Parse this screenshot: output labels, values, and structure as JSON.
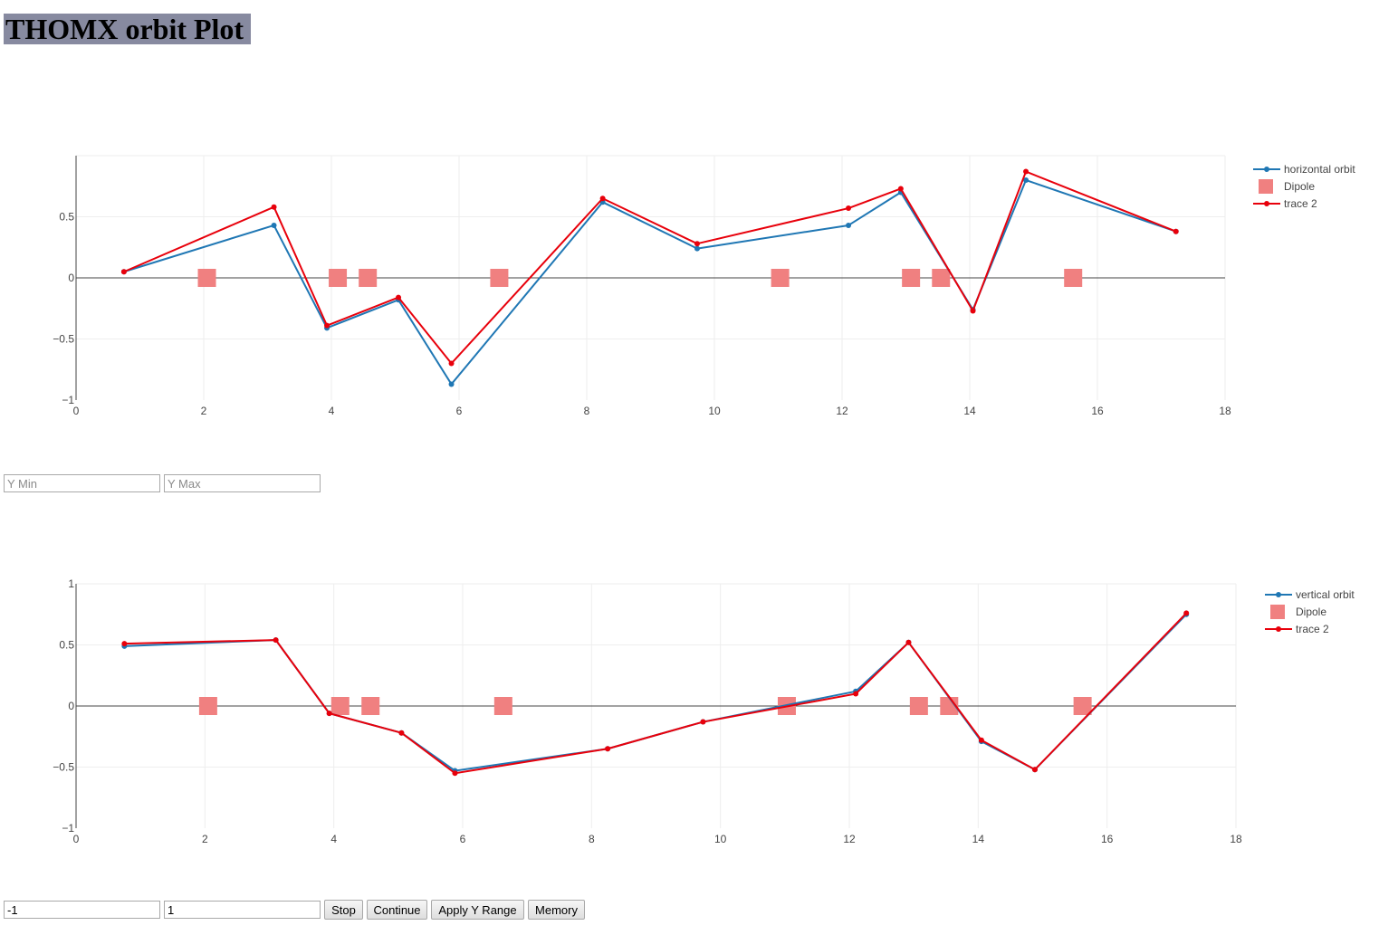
{
  "header": {
    "title": "THOMX orbit Plot"
  },
  "y_range_top": {
    "min_placeholder": "Y Min",
    "max_placeholder": "Y Max"
  },
  "y_range_bottom": {
    "min_value": "-1",
    "max_value": "1"
  },
  "buttons": {
    "stop": "Stop",
    "continue": "Continue",
    "apply": "Apply Y Range",
    "memory": "Memory"
  },
  "colors": {
    "orbit": "#1f77b4",
    "trace2": "#e8000b",
    "dipole": "#f08080"
  },
  "chart_data": [
    {
      "type": "line",
      "xlim": [
        0,
        18
      ],
      "ylim": [
        -1,
        1
      ],
      "x_ticks": [
        "0",
        "2",
        "4",
        "6",
        "8",
        "10",
        "12",
        "14",
        "16",
        "18"
      ],
      "y_ticks": [
        "0.5",
        "0",
        "−0.5",
        "−1"
      ],
      "grid": true,
      "legend_position": "top-right",
      "series": [
        {
          "name": "horizontal orbit",
          "mode": "lines+markers",
          "x": [
            0.75,
            3.1,
            3.93,
            5.05,
            5.88,
            8.25,
            9.73,
            12.1,
            12.92,
            14.05,
            14.88,
            17.23
          ],
          "y": [
            0.05,
            0.43,
            -0.41,
            -0.18,
            -0.87,
            0.62,
            0.24,
            0.43,
            0.7,
            -0.26,
            0.8,
            0.38
          ]
        },
        {
          "name": "Dipole",
          "mode": "markers",
          "x": [
            2.05,
            4.1,
            4.57,
            6.63,
            11.03,
            13.08,
            13.55,
            15.62
          ],
          "y": [
            0,
            0,
            0,
            0,
            0,
            0,
            0,
            0
          ]
        },
        {
          "name": "trace 2",
          "mode": "lines+markers",
          "x": [
            0.75,
            3.1,
            3.93,
            5.05,
            5.88,
            8.25,
            9.73,
            12.1,
            12.92,
            14.05,
            14.88,
            17.23
          ],
          "y": [
            0.05,
            0.58,
            -0.39,
            -0.16,
            -0.7,
            0.65,
            0.28,
            0.57,
            0.73,
            -0.27,
            0.87,
            0.38
          ]
        }
      ]
    },
    {
      "type": "line",
      "xlim": [
        0,
        18
      ],
      "ylim": [
        -1,
        1
      ],
      "x_ticks": [
        "0",
        "2",
        "4",
        "6",
        "8",
        "10",
        "12",
        "14",
        "16",
        "18"
      ],
      "y_ticks": [
        "1",
        "0.5",
        "0",
        "−0.5",
        "−1"
      ],
      "grid": true,
      "legend_position": "top-right",
      "series": [
        {
          "name": "vertical orbit",
          "mode": "lines+markers",
          "x": [
            0.75,
            3.1,
            3.93,
            5.05,
            5.88,
            8.25,
            9.73,
            12.1,
            12.92,
            14.05,
            14.88,
            17.23
          ],
          "y": [
            0.49,
            0.54,
            -0.06,
            -0.22,
            -0.53,
            -0.35,
            -0.13,
            0.12,
            0.52,
            -0.29,
            -0.52,
            0.75
          ]
        },
        {
          "name": "Dipole",
          "mode": "markers",
          "x": [
            2.05,
            4.1,
            4.57,
            6.63,
            11.03,
            13.08,
            13.55,
            15.62
          ],
          "y": [
            0,
            0,
            0,
            0,
            0,
            0,
            0,
            0
          ]
        },
        {
          "name": "trace 2",
          "mode": "lines+markers",
          "x": [
            0.75,
            3.1,
            3.93,
            5.05,
            5.88,
            8.25,
            9.73,
            12.1,
            12.92,
            14.05,
            14.88,
            17.23
          ],
          "y": [
            0.51,
            0.54,
            -0.06,
            -0.22,
            -0.55,
            -0.35,
            -0.13,
            0.1,
            0.52,
            -0.28,
            -0.52,
            0.76
          ]
        }
      ]
    }
  ]
}
